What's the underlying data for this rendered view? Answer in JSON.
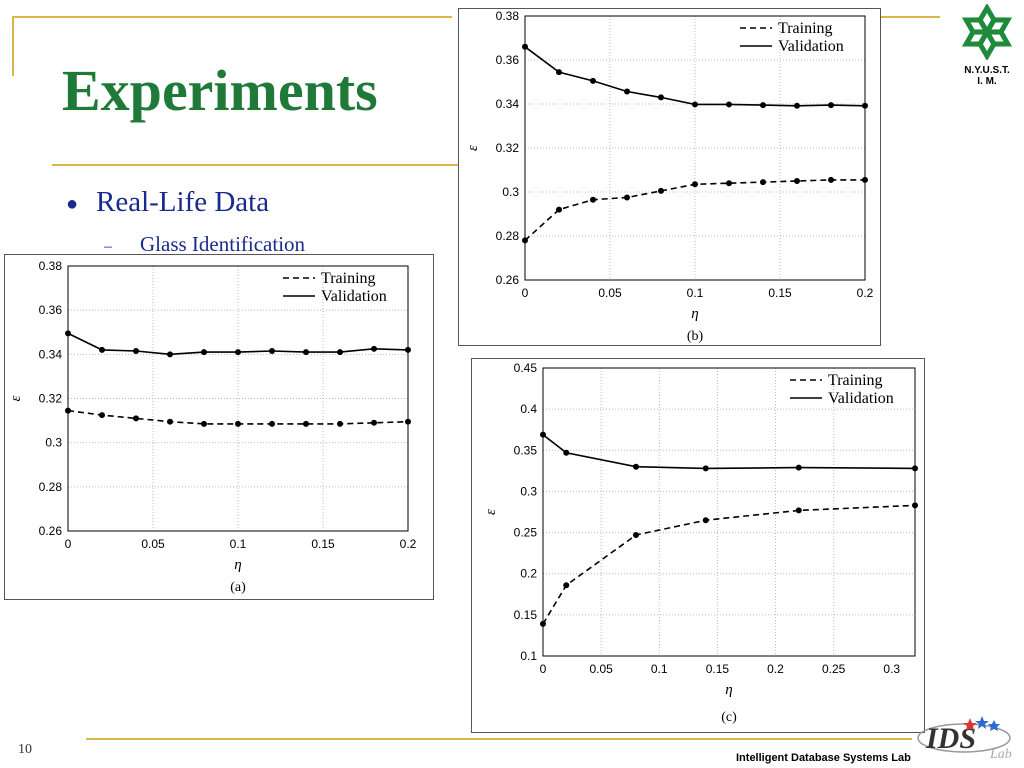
{
  "slide": {
    "title": "Experiments",
    "bullet1": "Real-Life Data",
    "bullet2": "Glass Identification",
    "page_number": "10",
    "footer": "Intelligent Database Systems Lab",
    "logo_text": "N.Y.U.S.T.\nI. M.",
    "ids_logo_text": "IDS",
    "ids_logo_sub": "Lab"
  },
  "colors": {
    "title": "#1f7a3a",
    "bullets": "#1a2a8c",
    "rules": "#d9b54a",
    "logo_green": "#1e8a3c"
  },
  "chart_data": [
    {
      "type": "line",
      "caption": "(a)",
      "xlabel": "η",
      "ylabel": "ε",
      "xlim": [
        0,
        0.2
      ],
      "ylim": [
        0.26,
        0.38
      ],
      "xticks": [
        "0",
        "0.05",
        "0.1",
        "0.15",
        "0.2"
      ],
      "yticks": [
        "0.26",
        "0.28",
        "0.3",
        "0.32",
        "0.34",
        "0.36",
        "0.38"
      ],
      "legend": "top-right",
      "grid": "dotted",
      "series": [
        {
          "name": "Training",
          "style": "dashed",
          "x": [
            0,
            0.02,
            0.04,
            0.06,
            0.08,
            0.1,
            0.12,
            0.14,
            0.16,
            0.18,
            0.2
          ],
          "y": [
            0.3145,
            0.3125,
            0.311,
            0.3095,
            0.3085,
            0.3085,
            0.3085,
            0.3085,
            0.3085,
            0.309,
            0.3095
          ]
        },
        {
          "name": "Validation",
          "style": "solid",
          "x": [
            0,
            0.02,
            0.04,
            0.06,
            0.08,
            0.1,
            0.12,
            0.14,
            0.16,
            0.18,
            0.2
          ],
          "y": [
            0.3495,
            0.342,
            0.3415,
            0.34,
            0.341,
            0.341,
            0.3415,
            0.341,
            0.341,
            0.3425,
            0.342
          ]
        }
      ]
    },
    {
      "type": "line",
      "caption": "(b)",
      "xlabel": "η",
      "ylabel": "ε",
      "xlim": [
        0,
        0.2
      ],
      "ylim": [
        0.26,
        0.38
      ],
      "xticks": [
        "0",
        "0.05",
        "0.1",
        "0.15",
        "0.2"
      ],
      "yticks": [
        "0.26",
        "0.28",
        "0.3",
        "0.32",
        "0.34",
        "0.36",
        "0.38"
      ],
      "legend": "top-right",
      "grid": "dotted",
      "series": [
        {
          "name": "Training",
          "style": "dashed",
          "x": [
            0,
            0.02,
            0.04,
            0.06,
            0.08,
            0.1,
            0.12,
            0.14,
            0.16,
            0.18,
            0.2
          ],
          "y": [
            0.278,
            0.292,
            0.2965,
            0.2975,
            0.3005,
            0.3035,
            0.304,
            0.3045,
            0.305,
            0.3055,
            0.3055
          ]
        },
        {
          "name": "Validation",
          "style": "solid",
          "x": [
            0,
            0.02,
            0.04,
            0.06,
            0.08,
            0.1,
            0.12,
            0.14,
            0.16,
            0.18,
            0.2
          ],
          "y": [
            0.366,
            0.3545,
            0.3505,
            0.3457,
            0.343,
            0.3398,
            0.3398,
            0.3395,
            0.3392,
            0.3395,
            0.3392
          ]
        }
      ]
    },
    {
      "type": "line",
      "caption": "(c)",
      "xlabel": "η",
      "ylabel": "ε",
      "xlim": [
        0,
        0.32
      ],
      "ylim": [
        0.1,
        0.45
      ],
      "xticks": [
        "0",
        "0.05",
        "0.1",
        "0.15",
        "0.2",
        "0.25",
        "0.3"
      ],
      "yticks": [
        "0.1",
        "0.15",
        "0.2",
        "0.25",
        "0.3",
        "0.35",
        "0.4",
        "0.45"
      ],
      "legend": "top-right",
      "grid": "dotted",
      "series": [
        {
          "name": "Training",
          "style": "dashed",
          "x": [
            0,
            0.02,
            0.08,
            0.14,
            0.22,
            0.32
          ],
          "y": [
            0.139,
            0.186,
            0.247,
            0.265,
            0.277,
            0.283
          ]
        },
        {
          "name": "Validation",
          "style": "solid",
          "x": [
            0,
            0.02,
            0.08,
            0.14,
            0.22,
            0.32
          ],
          "y": [
            0.369,
            0.347,
            0.33,
            0.328,
            0.329,
            0.328
          ]
        }
      ]
    }
  ]
}
